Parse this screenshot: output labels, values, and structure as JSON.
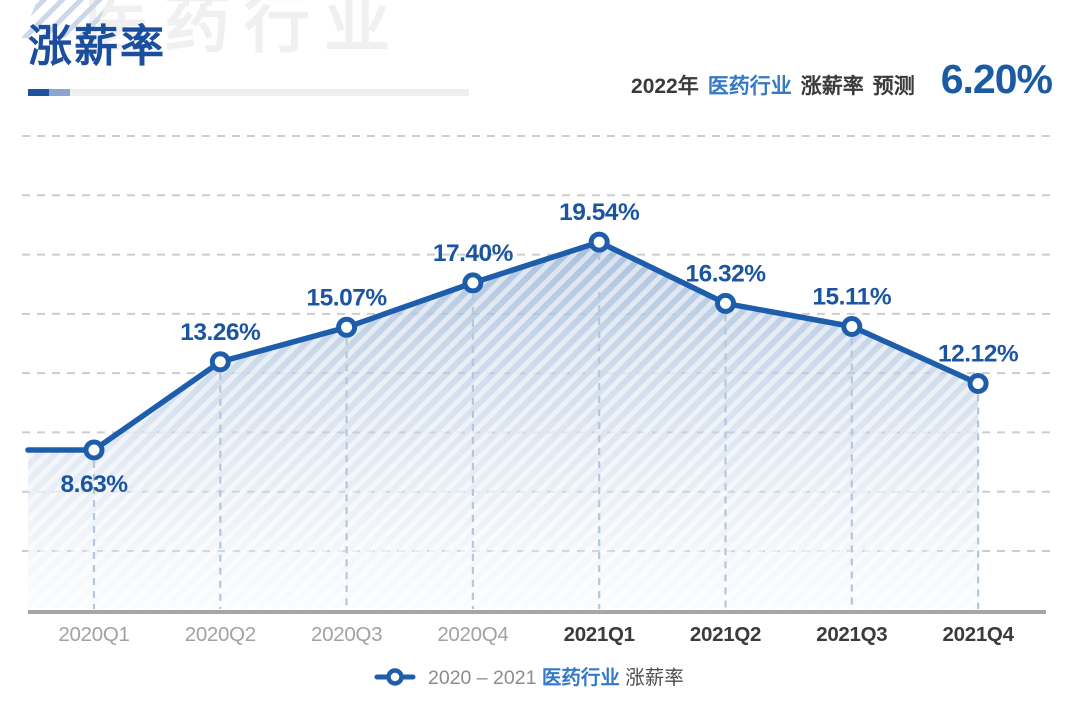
{
  "page": {
    "title": "涨薪率",
    "watermark": "医药行业"
  },
  "header": {
    "year": "2022年",
    "industry": "医药行业",
    "metric": "涨薪率",
    "label": "预测",
    "value": "6.20%"
  },
  "chart_data": {
    "type": "line",
    "title": "2020 – 2021 医药行业 涨薪率",
    "categories": [
      "2020Q1",
      "2020Q2",
      "2020Q3",
      "2020Q4",
      "2021Q1",
      "2021Q2",
      "2021Q3",
      "2021Q4"
    ],
    "values": [
      8.63,
      13.26,
      15.07,
      17.4,
      19.54,
      16.32,
      15.11,
      12.12
    ],
    "point_labels": [
      "8.63%",
      "13.26%",
      "15.07%",
      "17.40%",
      "19.54%",
      "16.32%",
      "15.11%",
      "12.12%"
    ],
    "xlabel": "",
    "ylabel": "",
    "ylim": [
      0,
      26
    ],
    "grid": "horizontal-dashed",
    "legend_position": "bottom-center",
    "legend": {
      "range_label": "2020 – 2021",
      "industry_label": "医药行业",
      "metric_label": "涨薪率"
    },
    "colors": {
      "line": "#1e5dab",
      "point_label": "#1b55a2",
      "industry_blue": "#3579c6",
      "gridline": "#cdcdcd",
      "axis": "#a6a6a6",
      "tick_2020": "#a2a2a2",
      "tick_2021": "#3b3b3b",
      "legend_gray": "#8c8c8c",
      "legend_dark": "#4d4d4d",
      "area_top": "#9db7d8",
      "area_bottom": "#eef3f9",
      "vertical_dash": "#b5c7dc"
    }
  }
}
